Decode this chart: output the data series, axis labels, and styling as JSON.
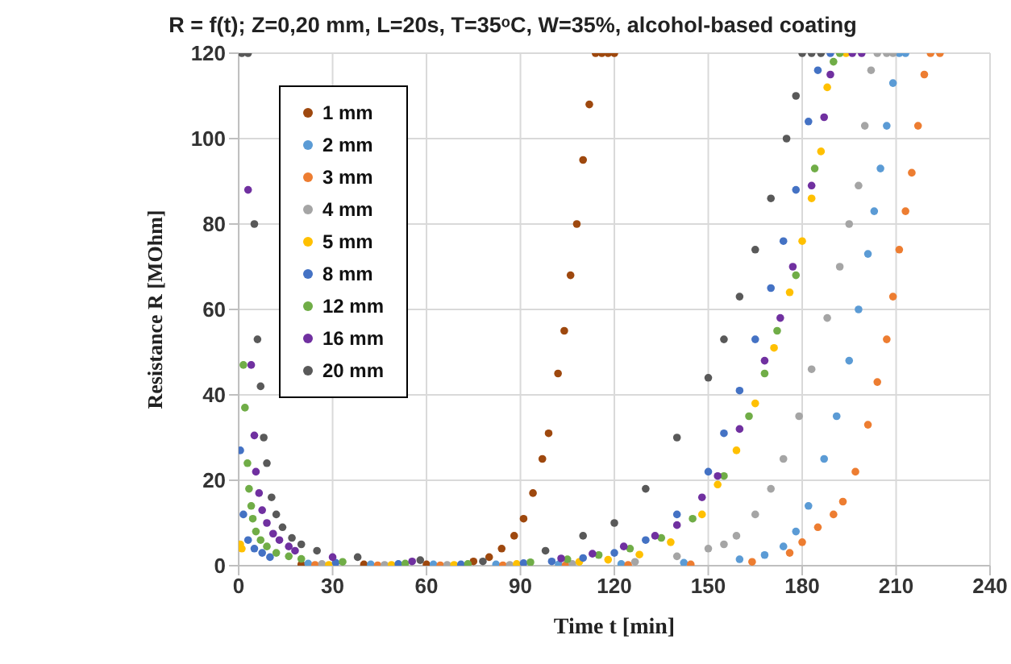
{
  "chart_data": {
    "type": "scatter",
    "title": "R = f(t); Z=0,20 mm, L=20s, T=35ᵒC, W=35%, alcohol-based coating",
    "xlabel": "Time t [min]",
    "ylabel": "Resistance R [MOhm]",
    "xlim": [
      0,
      240
    ],
    "xticks": [
      0,
      30,
      60,
      90,
      120,
      150,
      180,
      210,
      240
    ],
    "ylim": [
      0,
      120
    ],
    "yticks": [
      0,
      20,
      40,
      60,
      80,
      100,
      120
    ],
    "grid": true,
    "legend": "top left",
    "marker": "circle",
    "series": [
      {
        "name": "1 mm",
        "color": "#9e480e",
        "x": [
          20,
          40,
          60,
          75,
          80,
          84,
          88,
          91,
          94,
          97,
          99,
          102,
          104,
          106,
          108,
          110,
          112,
          114,
          116,
          118,
          120
        ],
        "values": [
          0.3,
          0.3,
          0.3,
          1,
          2,
          4,
          7,
          11,
          17,
          25,
          31,
          45,
          55,
          68,
          80,
          95,
          108,
          120,
          120,
          120,
          120
        ]
      },
      {
        "name": "2 mm",
        "color": "#5b9bd5",
        "x": [
          22.2,
          42.2,
          62.2,
          82.2,
          102.2,
          122.2,
          142.2,
          160,
          168,
          174,
          178,
          182,
          187,
          191,
          195,
          198,
          201,
          203,
          205,
          207,
          209,
          211,
          213
        ],
        "values": [
          0.5,
          0.3,
          0.3,
          0.3,
          0.3,
          0.4,
          0.7,
          1.5,
          2.5,
          4.5,
          8,
          14,
          25,
          35,
          48,
          60,
          73,
          83,
          93,
          103,
          113,
          120,
          120
        ]
      },
      {
        "name": "3 mm",
        "color": "#ed7d31",
        "x": [
          24.4,
          44.4,
          64.4,
          84.4,
          104.4,
          124.4,
          144.4,
          164,
          176,
          180,
          185,
          190,
          193,
          197,
          201,
          204,
          207,
          209,
          211,
          213,
          215,
          217,
          219,
          221,
          224
        ],
        "values": [
          0.2,
          0.1,
          0.1,
          0.1,
          0.1,
          0.2,
          0.3,
          0.9,
          3,
          5.5,
          9,
          12,
          15,
          22,
          33,
          43,
          53,
          63,
          74,
          83,
          92,
          103,
          115,
          120,
          120
        ]
      },
      {
        "name": "4 mm",
        "color": "#a5a5a5",
        "x": [
          26.6,
          46.6,
          66.6,
          86.6,
          106.6,
          126.6,
          140,
          150,
          155,
          159,
          165,
          170,
          174,
          179,
          183,
          188,
          192,
          195,
          198,
          200,
          202,
          204,
          207,
          209
        ],
        "values": [
          0.4,
          0.2,
          0.2,
          0.2,
          0.4,
          0.9,
          2.2,
          4,
          5,
          7,
          12,
          18,
          25,
          35,
          46,
          58,
          70,
          80,
          89,
          103,
          116,
          120,
          120,
          120
        ]
      },
      {
        "name": "5 mm",
        "color": "#ffc000",
        "x": [
          0.5,
          1,
          28.8,
          48.8,
          68.8,
          88.8,
          108.8,
          118,
          128,
          138,
          148,
          153,
          159,
          165,
          171,
          176,
          180,
          183,
          186,
          188,
          194
        ],
        "values": [
          5,
          4,
          0.2,
          0.2,
          0.2,
          0.4,
          0.9,
          1.4,
          2.6,
          5.5,
          12,
          19,
          27,
          38,
          51,
          64,
          76,
          86,
          97,
          112,
          120
        ]
      },
      {
        "name": "8 mm",
        "color": "#4472c4",
        "x": [
          0.5,
          1.5,
          3,
          5,
          7.5,
          10,
          31,
          51,
          71,
          91,
          100,
          110,
          120,
          130,
          140,
          150,
          155,
          160,
          165,
          170,
          174,
          178,
          182,
          185,
          189
        ],
        "values": [
          27,
          12,
          6,
          4,
          3,
          2,
          0.7,
          0.4,
          0.3,
          0.6,
          1,
          1.8,
          3,
          6,
          12,
          22,
          31,
          41,
          53,
          65,
          76,
          88,
          104,
          116,
          120
        ]
      },
      {
        "name": "12 mm",
        "color": "#70ad47",
        "x": [
          1.5,
          2,
          2.8,
          3.3,
          4,
          4.5,
          5.5,
          7,
          9,
          12,
          16,
          20,
          33.2,
          53.2,
          73.2,
          93.2,
          105,
          115,
          125,
          135,
          145,
          155,
          163,
          168,
          172,
          178,
          184,
          190,
          192
        ],
        "values": [
          47,
          37,
          24,
          18,
          14,
          11,
          8,
          6,
          4.5,
          3,
          2.2,
          1.6,
          0.9,
          0.5,
          0.4,
          0.8,
          1.5,
          2.5,
          4,
          6.5,
          11,
          21,
          35,
          45,
          55,
          68,
          93,
          118,
          120
        ]
      },
      {
        "name": "16 mm",
        "color": "#7030a0",
        "x": [
          3,
          4,
          5,
          5.5,
          6.5,
          7.5,
          9,
          11,
          13,
          16,
          18,
          30,
          55.4,
          103,
          113,
          123,
          133,
          140,
          148,
          153,
          160,
          168,
          173,
          177,
          183,
          187,
          189,
          196,
          199
        ],
        "values": [
          88,
          47,
          30.5,
          22,
          17,
          13,
          10,
          7.5,
          6,
          4.5,
          3.5,
          2,
          1,
          1.7,
          2.8,
          4.5,
          7,
          9.5,
          16,
          21,
          32,
          48,
          58,
          70,
          89,
          105,
          115,
          120,
          120
        ]
      },
      {
        "name": "20 mm",
        "color": "#595959",
        "x": [
          1,
          3,
          5,
          6,
          7,
          8,
          9,
          10.5,
          12,
          14,
          17,
          20,
          25,
          38,
          58,
          78,
          98,
          110,
          120,
          130,
          140,
          150,
          155,
          160,
          165,
          170,
          175,
          178,
          180,
          183,
          186
        ],
        "values": [
          120,
          120,
          80,
          53,
          42,
          30,
          24,
          16,
          12,
          9,
          6.5,
          5,
          3.5,
          2,
          1.3,
          1,
          3.5,
          7,
          10,
          18,
          30,
          44,
          53,
          63,
          74,
          86,
          100,
          110,
          120,
          120,
          120
        ]
      }
    ]
  }
}
